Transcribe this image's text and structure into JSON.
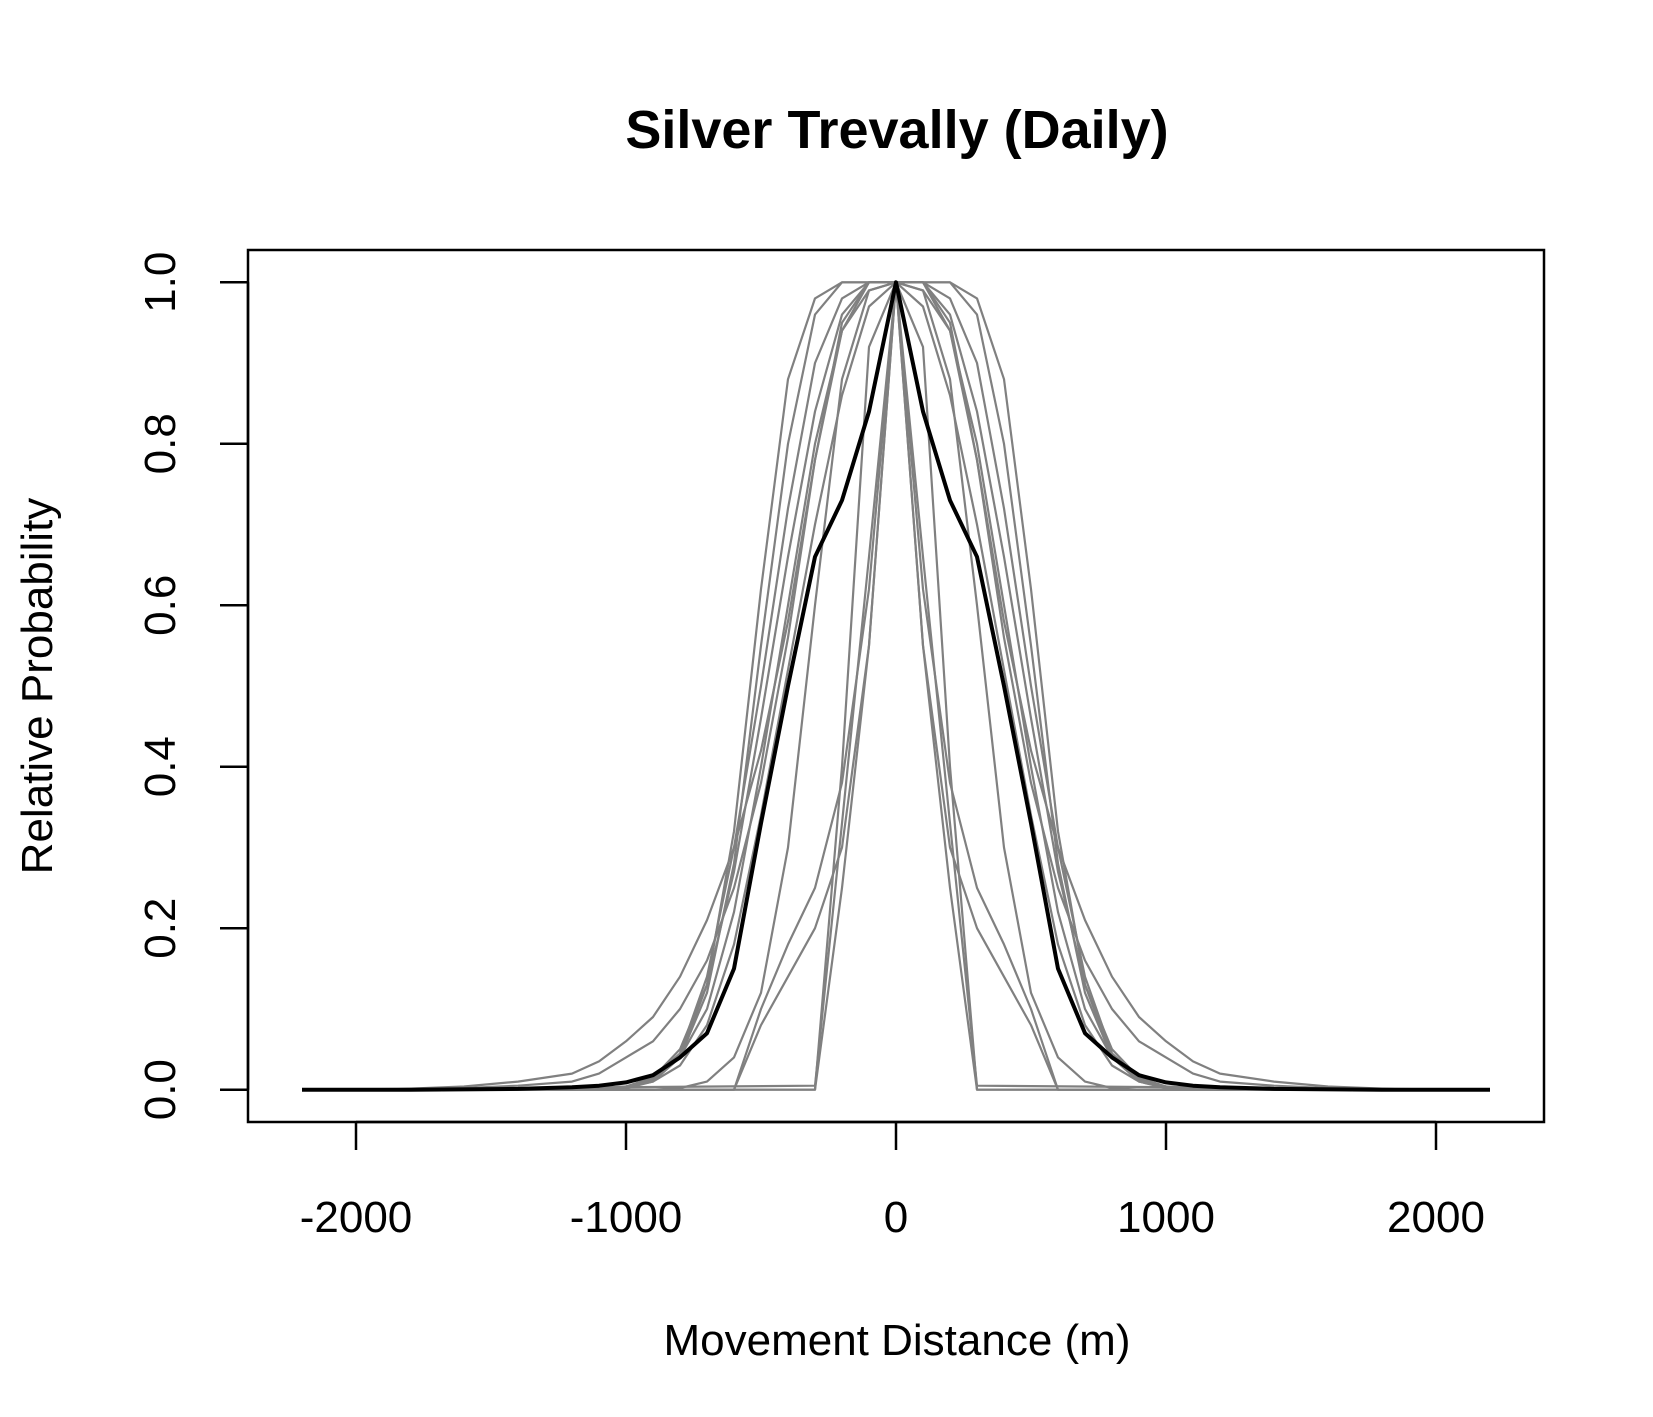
{
  "chart_data": {
    "type": "line",
    "title": "Silver Trevally (Daily)",
    "xlabel": "Movement Distance (m)",
    "ylabel": "Relative Probability",
    "xlim": [
      -2400,
      2400
    ],
    "ylim": [
      -0.04,
      1.04
    ],
    "x_ticks": [
      -2000,
      -1000,
      0,
      1000,
      2000
    ],
    "x_tick_labels": [
      "-2000",
      "-1000",
      "0",
      "1000",
      "2000"
    ],
    "y_ticks": [
      0.0,
      0.2,
      0.4,
      0.6,
      0.8,
      1.0
    ],
    "y_tick_labels": [
      "0.0",
      "0.2",
      "0.4",
      "0.6",
      "0.8",
      "1.0"
    ],
    "grid": false,
    "colors": {
      "individual": "#808080",
      "mean": "#000000"
    },
    "individual_curves": [
      {
        "x": [
          -2200,
          -1900,
          -1600,
          -1400,
          -1200,
          -1100,
          -1000,
          -900,
          -800,
          -700,
          -600,
          -500,
          -400,
          -300,
          -200,
          -100,
          0,
          100,
          200,
          300,
          400,
          500,
          600,
          700,
          800,
          900,
          1000,
          1100,
          1200,
          1400,
          1600,
          1900,
          2200
        ],
        "y": [
          0,
          0,
          0.002,
          0.005,
          0.01,
          0.02,
          0.04,
          0.06,
          0.1,
          0.16,
          0.25,
          0.38,
          0.56,
          0.78,
          0.95,
          1,
          1,
          1,
          0.95,
          0.78,
          0.56,
          0.38,
          0.25,
          0.16,
          0.1,
          0.06,
          0.04,
          0.02,
          0.01,
          0.005,
          0.002,
          0,
          0
        ]
      },
      {
        "x": [
          -2200,
          -1900,
          -1600,
          -1400,
          -1200,
          -1100,
          -1000,
          -900,
          -800,
          -700,
          -600,
          -500,
          -400,
          -300,
          -200,
          -100,
          0,
          100,
          200,
          300,
          400,
          500,
          600,
          700,
          800,
          900,
          1000,
          1100,
          1200,
          1400,
          1600,
          1900,
          2200
        ],
        "y": [
          0,
          0,
          0.004,
          0.01,
          0.02,
          0.035,
          0.06,
          0.09,
          0.14,
          0.21,
          0.3,
          0.42,
          0.58,
          0.78,
          0.94,
          1,
          1,
          1,
          0.94,
          0.78,
          0.58,
          0.42,
          0.3,
          0.21,
          0.14,
          0.09,
          0.06,
          0.035,
          0.02,
          0.01,
          0.004,
          0,
          0
        ]
      },
      {
        "x": [
          -2200,
          -1200,
          -1000,
          -900,
          -800,
          -700,
          -600,
          -500,
          -400,
          -300,
          -200,
          -100,
          0,
          100,
          200,
          300,
          400,
          500,
          600,
          700,
          800,
          900,
          1000,
          1200,
          2200
        ],
        "y": [
          0,
          0,
          0.002,
          0.01,
          0.04,
          0.13,
          0.32,
          0.62,
          0.88,
          0.98,
          1,
          1,
          1,
          1,
          1,
          0.98,
          0.88,
          0.62,
          0.32,
          0.13,
          0.04,
          0.01,
          0.002,
          0,
          0
        ]
      },
      {
        "x": [
          -2200,
          -1200,
          -1000,
          -900,
          -800,
          -700,
          -600,
          -500,
          -400,
          -300,
          -200,
          -100,
          0,
          100,
          200,
          300,
          400,
          500,
          600,
          700,
          800,
          900,
          1000,
          1200,
          2200
        ],
        "y": [
          0,
          0,
          0.003,
          0.012,
          0.04,
          0.12,
          0.28,
          0.55,
          0.8,
          0.96,
          1,
          1,
          1,
          1,
          1,
          0.96,
          0.8,
          0.55,
          0.28,
          0.12,
          0.04,
          0.012,
          0.003,
          0,
          0
        ]
      },
      {
        "x": [
          -2200,
          -1200,
          -1000,
          -900,
          -800,
          -700,
          -600,
          -500,
          -400,
          -300,
          -200,
          -100,
          0,
          100,
          200,
          300,
          400,
          500,
          600,
          700,
          800,
          900,
          1000,
          1200,
          2200
        ],
        "y": [
          0,
          0,
          0.003,
          0.015,
          0.045,
          0.14,
          0.3,
          0.5,
          0.72,
          0.9,
          0.98,
          1,
          1,
          1,
          0.98,
          0.9,
          0.72,
          0.5,
          0.3,
          0.14,
          0.045,
          0.015,
          0.003,
          0,
          0
        ]
      },
      {
        "x": [
          -2200,
          -1200,
          -1000,
          -900,
          -800,
          -700,
          -600,
          -500,
          -400,
          -300,
          -200,
          -100,
          0,
          100,
          200,
          300,
          400,
          500,
          600,
          700,
          800,
          900,
          1000,
          1200,
          2200
        ],
        "y": [
          0,
          0,
          0.004,
          0.015,
          0.05,
          0.13,
          0.27,
          0.46,
          0.66,
          0.84,
          0.96,
          1,
          1,
          1,
          0.96,
          0.84,
          0.66,
          0.46,
          0.27,
          0.13,
          0.05,
          0.015,
          0.004,
          0,
          0
        ]
      },
      {
        "x": [
          -2200,
          -1200,
          -1000,
          -900,
          -800,
          -700,
          -600,
          -500,
          -400,
          -300,
          -200,
          -100,
          0,
          100,
          200,
          300,
          400,
          500,
          600,
          700,
          800,
          900,
          1000,
          1200,
          2200
        ],
        "y": [
          0,
          0,
          0.004,
          0.012,
          0.04,
          0.1,
          0.22,
          0.4,
          0.6,
          0.8,
          0.94,
          0.99,
          1,
          0.99,
          0.94,
          0.8,
          0.6,
          0.4,
          0.22,
          0.1,
          0.04,
          0.012,
          0.004,
          0,
          0
        ]
      },
      {
        "x": [
          -2200,
          -1200,
          -1000,
          -900,
          -800,
          -700,
          -600,
          -500,
          -400,
          -300,
          -200,
          -100,
          0,
          100,
          200,
          300,
          400,
          500,
          600,
          700,
          800,
          900,
          1000,
          1200,
          2200
        ],
        "y": [
          0,
          0,
          0.003,
          0.01,
          0.03,
          0.08,
          0.18,
          0.34,
          0.52,
          0.7,
          0.86,
          0.97,
          1,
          0.97,
          0.86,
          0.7,
          0.52,
          0.34,
          0.18,
          0.08,
          0.03,
          0.01,
          0.003,
          0,
          0
        ]
      },
      {
        "x": [
          -2200,
          -900,
          -800,
          -700,
          -600,
          -500,
          -400,
          -300,
          -200,
          -100,
          0,
          100,
          200,
          300,
          400,
          500,
          600,
          700,
          800,
          900,
          2200
        ],
        "y": [
          0,
          0,
          0.002,
          0.01,
          0.04,
          0.12,
          0.3,
          0.6,
          0.88,
          0.99,
          1,
          0.99,
          0.88,
          0.6,
          0.3,
          0.12,
          0.04,
          0.01,
          0.002,
          0,
          0
        ]
      },
      {
        "x": [
          -2200,
          -600,
          -500,
          -400,
          -300,
          -200,
          -100,
          0,
          100,
          200,
          300,
          400,
          500,
          600,
          2200
        ],
        "y": [
          0,
          0,
          0.1,
          0.18,
          0.25,
          0.38,
          0.62,
          1,
          0.62,
          0.38,
          0.25,
          0.18,
          0.1,
          0,
          0
        ]
      },
      {
        "x": [
          -2200,
          -600,
          -500,
          -400,
          -300,
          -200,
          -100,
          0,
          100,
          200,
          300,
          400,
          500,
          600,
          2200
        ],
        "y": [
          0,
          0,
          0.08,
          0.14,
          0.2,
          0.3,
          0.55,
          1,
          0.55,
          0.3,
          0.2,
          0.14,
          0.08,
          0,
          0
        ]
      },
      {
        "x": [
          -2200,
          -300,
          -200,
          -100,
          0,
          100,
          200,
          300,
          2200
        ],
        "y": [
          0,
          0,
          0.25,
          0.55,
          1,
          0.55,
          0.25,
          0,
          0
        ]
      },
      {
        "x": [
          -2200,
          -300,
          -200,
          -100,
          0,
          100,
          200,
          300,
          2200
        ],
        "y": [
          0,
          0.005,
          0.33,
          0.66,
          1,
          0.66,
          0.33,
          0.005,
          0
        ]
      },
      {
        "x": [
          -2200,
          -300,
          -200,
          -100,
          0,
          100,
          200,
          300,
          2200
        ],
        "y": [
          0,
          0,
          0.4,
          0.92,
          1,
          0.92,
          0.4,
          0,
          0
        ]
      }
    ],
    "mean_curve": {
      "x": [
        -2200,
        -1800,
        -1400,
        -1200,
        -1100,
        -1000,
        -900,
        -800,
        -700,
        -600,
        -500,
        -400,
        -300,
        -200,
        -100,
        0,
        100,
        200,
        300,
        400,
        500,
        600,
        700,
        800,
        900,
        1000,
        1100,
        1200,
        1400,
        1800,
        2200
      ],
      "y": [
        0,
        0,
        0.001,
        0.003,
        0.005,
        0.009,
        0.018,
        0.04,
        0.07,
        0.15,
        0.33,
        0.5,
        0.66,
        0.73,
        0.84,
        1,
        0.84,
        0.73,
        0.66,
        0.5,
        0.33,
        0.15,
        0.07,
        0.04,
        0.018,
        0.009,
        0.005,
        0.003,
        0.001,
        0,
        0
      ]
    }
  }
}
